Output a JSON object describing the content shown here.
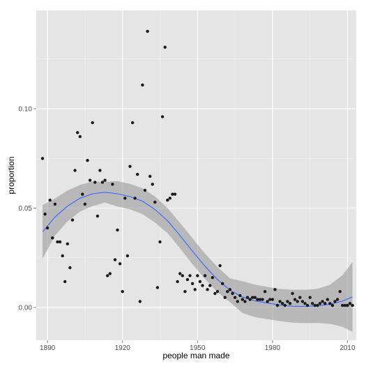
{
  "chart_data": {
    "type": "scatter",
    "title": "",
    "xlabel": "people man made",
    "ylabel": "proportion",
    "xlim": [
      1885.5,
      2013.5
    ],
    "ylim": [
      -0.0165,
      0.1495
    ],
    "x_ticks": [
      1890,
      1920,
      1950,
      1980,
      2010
    ],
    "y_ticks": [
      0.0,
      0.05,
      0.1
    ],
    "y_tick_labels": [
      "0.00",
      "0.05",
      "0.10"
    ],
    "grid": true,
    "legend": "none",
    "colors": {
      "panel": "#e5e5e5",
      "grid_major": "#ffffff",
      "grid_minor": "#f2f2f2",
      "points": "#1a1a1a",
      "smooth_line": "#3366ff",
      "ribbon": "#999999"
    },
    "points": {
      "x": [
        1888,
        1889,
        1890,
        1891,
        1892,
        1893,
        1894,
        1895,
        1896,
        1897,
        1898,
        1899,
        1900,
        1901,
        1902,
        1903,
        1904,
        1905,
        1906,
        1907,
        1908,
        1909,
        1910,
        1911,
        1912,
        1913,
        1914,
        1915,
        1916,
        1917,
        1918,
        1919,
        1920,
        1921,
        1922,
        1923,
        1924,
        1925,
        1926,
        1927,
        1928,
        1929,
        1930,
        1931,
        1932,
        1933,
        1934,
        1935,
        1936,
        1937,
        1938,
        1939,
        1940,
        1941,
        1942,
        1943,
        1944,
        1945,
        1946,
        1947,
        1948,
        1949,
        1950,
        1951,
        1952,
        1953,
        1954,
        1955,
        1956,
        1957,
        1958,
        1959,
        1960,
        1961,
        1962,
        1963,
        1964,
        1965,
        1966,
        1967,
        1968,
        1969,
        1970,
        1971,
        1972,
        1973,
        1974,
        1975,
        1976,
        1977,
        1978,
        1979,
        1980,
        1981,
        1982,
        1983,
        1984,
        1985,
        1986,
        1987,
        1988,
        1989,
        1990,
        1991,
        1992,
        1993,
        1994,
        1995,
        1996,
        1997,
        1998,
        1999,
        2000,
        2001,
        2002,
        2003,
        2004,
        2005,
        2006,
        2007,
        2008,
        2009,
        2010,
        2011,
        2012
      ],
      "y": [
        0.075,
        0.047,
        0.04,
        0.054,
        0.035,
        0.052,
        0.033,
        0.033,
        0.026,
        0.013,
        0.032,
        0.02,
        0.044,
        0.069,
        0.088,
        0.086,
        0.057,
        0.052,
        0.074,
        0.064,
        0.093,
        0.063,
        0.046,
        0.069,
        0.063,
        0.064,
        0.016,
        0.017,
        0.062,
        0.024,
        0.039,
        0.022,
        0.008,
        0.055,
        0.026,
        0.071,
        0.093,
        0.055,
        0.067,
        0.003,
        0.112,
        0.059,
        0.139,
        0.066,
        0.062,
        0.053,
        0.01,
        0.033,
        0.096,
        0.131,
        0.054,
        0.055,
        0.057,
        0.057,
        0.013,
        0.017,
        0.016,
        0.008,
        0.014,
        0.016,
        0.012,
        0.009,
        0.016,
        0.013,
        0.011,
        0.016,
        0.009,
        0.011,
        0.015,
        0.007,
        0.008,
        0.021,
        0.012,
        0.005,
        0.008,
        0.009,
        0.007,
        0.005,
        0.003,
        0.006,
        0.004,
        0.003,
        0.005,
        0.004,
        0.005,
        0.005,
        0.004,
        0.004,
        0.004,
        0.008,
        0.003,
        0.004,
        0.004,
        0.009,
        0.001,
        0.003,
        0.002,
        0.001,
        0.003,
        0.002,
        0.007,
        0.004,
        0.003,
        0.005,
        0.003,
        0.002,
        0.001,
        0.005,
        0.002,
        0.001,
        0.001,
        0.002,
        0.003,
        0.002,
        0.004,
        0.002,
        0.001,
        0.003,
        0.004,
        0.008,
        0.001,
        0.001,
        0.001,
        0.002,
        0.001
      ]
    },
    "smooth": {
      "x": [
        1888,
        1893,
        1898,
        1903,
        1908,
        1913,
        1918,
        1923,
        1928,
        1933,
        1938,
        1943,
        1948,
        1953,
        1958,
        1963,
        1968,
        1973,
        1978,
        1983,
        1988,
        1993,
        1998,
        2003,
        2008,
        2012
      ],
      "fit": [
        0.038,
        0.0455,
        0.051,
        0.055,
        0.0572,
        0.058,
        0.0572,
        0.0558,
        0.0535,
        0.0493,
        0.0437,
        0.0362,
        0.0283,
        0.0207,
        0.014,
        0.0087,
        0.0052,
        0.0033,
        0.0022,
        0.0012,
        0.0006,
        0.0005,
        0.0008,
        0.0016,
        0.0032,
        0.0053
      ],
      "lower": [
        0.0245,
        0.0362,
        0.0432,
        0.0483,
        0.051,
        0.0528,
        0.0508,
        0.0494,
        0.047,
        0.0427,
        0.0374,
        0.0298,
        0.0218,
        0.0143,
        0.0076,
        0.0027,
        -0.0028,
        -0.0049,
        -0.0059,
        -0.0069,
        -0.0077,
        -0.0079,
        -0.0078,
        -0.0082,
        -0.0098,
        -0.0123
      ],
      "upper": [
        0.0515,
        0.0548,
        0.0588,
        0.0617,
        0.0634,
        0.0632,
        0.0636,
        0.0622,
        0.06,
        0.0559,
        0.05,
        0.0426,
        0.0348,
        0.0271,
        0.0204,
        0.0147,
        0.0132,
        0.0115,
        0.0103,
        0.0093,
        0.0089,
        0.0089,
        0.0094,
        0.0114,
        0.0162,
        0.0229
      ]
    }
  }
}
